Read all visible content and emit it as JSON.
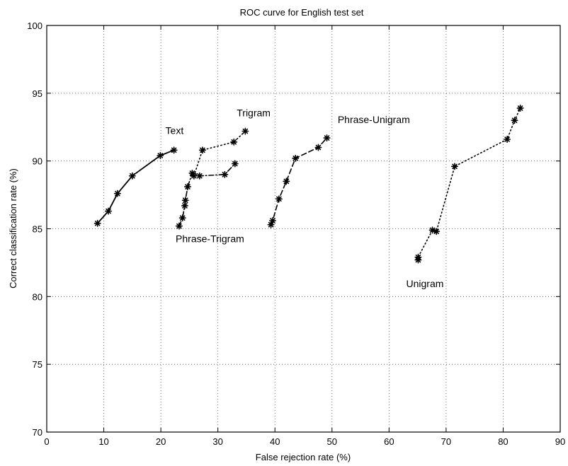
{
  "chart_data": {
    "type": "line",
    "title": "ROC curve for English test set",
    "xlabel": "False rejection rate (%)",
    "ylabel": "Correct classification rate (%)",
    "xlim": [
      0,
      90
    ],
    "ylim": [
      70,
      100
    ],
    "xticks": [
      0,
      10,
      20,
      30,
      40,
      50,
      60,
      70,
      80,
      90
    ],
    "yticks": [
      70,
      75,
      80,
      85,
      90,
      95,
      100
    ],
    "grid": true,
    "colors": {
      "line": "#000000",
      "grid": "#555555",
      "background": "#ffffff"
    },
    "series": [
      {
        "name": "Text",
        "line_style": "solid",
        "marker": "asterisk",
        "label_at": [
          20.8,
          92.0
        ],
        "points": [
          [
            8.9,
            85.4
          ],
          [
            10.8,
            86.3
          ],
          [
            12.4,
            87.6
          ],
          [
            15.0,
            88.9
          ],
          [
            19.9,
            90.4
          ],
          [
            22.3,
            90.8
          ]
        ]
      },
      {
        "name": "Trigram",
        "line_style": "dotted",
        "marker": "asterisk",
        "label_at": [
          33.3,
          93.3
        ],
        "points": [
          [
            25.8,
            88.9
          ],
          [
            27.3,
            90.8
          ],
          [
            32.8,
            91.4
          ],
          [
            34.8,
            92.2
          ]
        ]
      },
      {
        "name": "Phrase-Trigram",
        "line_style": "dashdot",
        "marker": "asterisk",
        "label_at": [
          22.6,
          84.0
        ],
        "points": [
          [
            23.2,
            85.2
          ],
          [
            23.8,
            85.8
          ],
          [
            24.2,
            86.7
          ],
          [
            24.3,
            87.1
          ],
          [
            24.7,
            88.1
          ],
          [
            25.5,
            89.1
          ],
          [
            26.8,
            88.9
          ],
          [
            31.2,
            89.0
          ],
          [
            33.0,
            89.8
          ]
        ]
      },
      {
        "name": "Phrase-Unigram",
        "line_style": "dashed",
        "marker": "asterisk",
        "label_at": [
          51.0,
          92.8
        ],
        "points": [
          [
            39.3,
            85.3
          ],
          [
            39.6,
            85.6
          ],
          [
            40.7,
            87.2
          ],
          [
            42.0,
            88.5
          ],
          [
            43.6,
            90.2
          ],
          [
            47.6,
            91.0
          ],
          [
            49.1,
            91.7
          ]
        ]
      },
      {
        "name": "Unigram",
        "line_style": "dotted",
        "marker": "asterisk",
        "label_at": [
          63.0,
          80.7
        ],
        "points": [
          [
            65.1,
            82.7
          ],
          [
            65.1,
            82.9
          ],
          [
            67.6,
            84.9
          ],
          [
            68.3,
            84.8
          ],
          [
            71.5,
            89.6
          ],
          [
            80.7,
            91.6
          ],
          [
            82.0,
            93.0
          ],
          [
            83.0,
            93.9
          ]
        ]
      }
    ]
  }
}
